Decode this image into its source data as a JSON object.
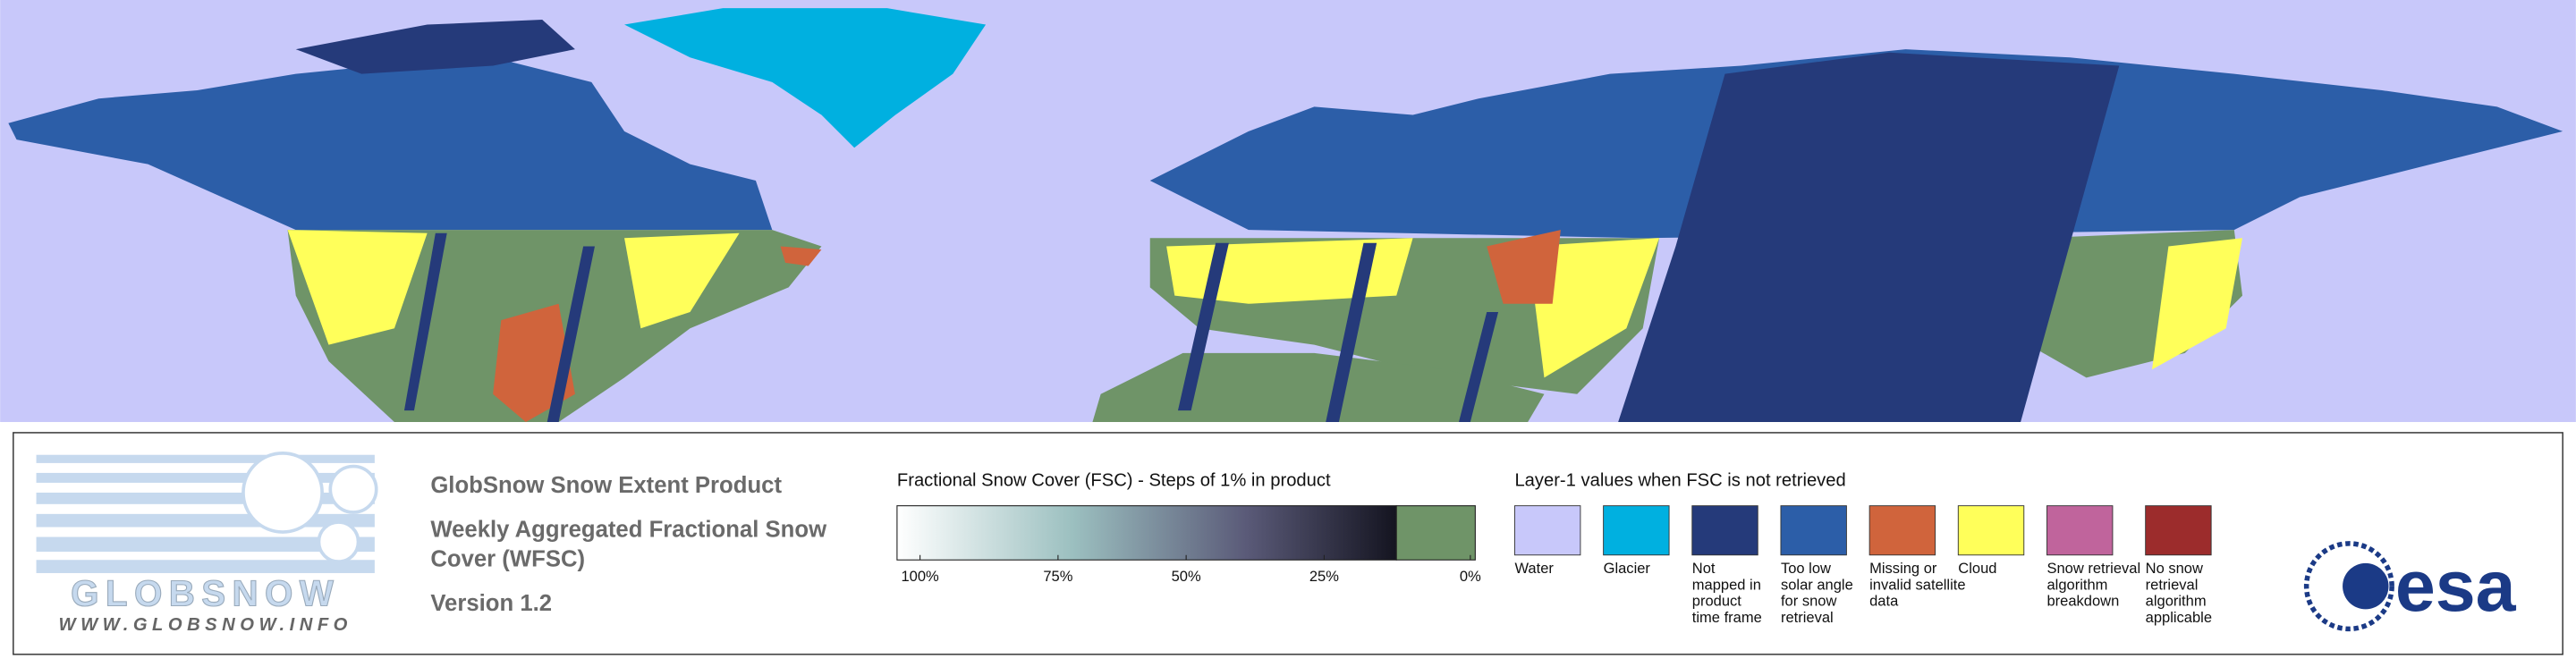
{
  "logo": {
    "brand": "GLOBSNOW",
    "url": "WWW.GLOBSNOW.INFO"
  },
  "product": {
    "title": "GlobSnow Snow Extent Product",
    "subtitle_lines": [
      "Weekly Aggregated Fractional Snow",
      "Cover (WFSC)"
    ],
    "version": "Version 1.2"
  },
  "fsc_scale": {
    "title": "Fractional Snow Cover (FSC) - Steps of 1% in product",
    "ticks": [
      "100%",
      "75%",
      "50%",
      "25%",
      "0%"
    ]
  },
  "layer1": {
    "title": "Layer-1 values when FSC is not retrieved",
    "items": [
      {
        "lines": [
          "Water"
        ],
        "color": "#c8c8fa"
      },
      {
        "lines": [
          "Glacier"
        ],
        "color": "#00b0e0"
      },
      {
        "lines": [
          "Not",
          "mapped in",
          "product",
          "time frame"
        ],
        "color": "#253a7a"
      },
      {
        "lines": [
          "Too low",
          "solar angle",
          "for snow",
          "retrieval"
        ],
        "color": "#2c5ea8"
      },
      {
        "lines": [
          "Missing or",
          "invalid satellite",
          "data"
        ],
        "color": "#d0643c"
      },
      {
        "lines": [
          "Cloud"
        ],
        "color": "#ffff5a"
      },
      {
        "lines": [
          "Snow retrieval",
          "algorithm",
          "breakdown"
        ],
        "color": "#c0649c"
      },
      {
        "lines": [
          "No snow",
          "retrieval",
          "algorithm",
          "applicable"
        ],
        "color": "#9c2c2c"
      }
    ]
  },
  "esa": "esa"
}
